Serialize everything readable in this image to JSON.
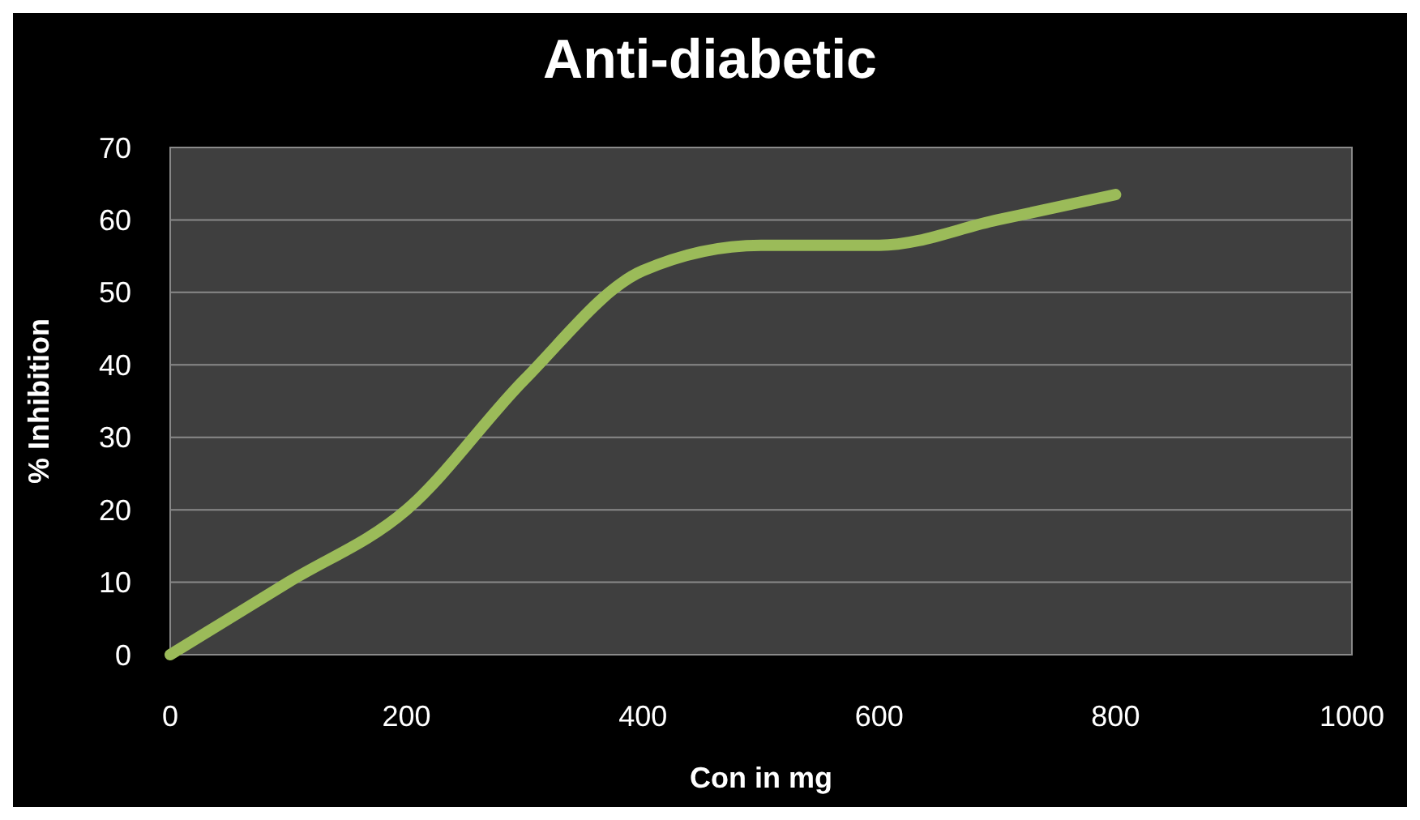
{
  "chart_data": {
    "type": "line",
    "title": "Anti-diabetic",
    "xlabel": "Con in mg",
    "ylabel": "% Inhibition",
    "x": [
      0,
      100,
      200,
      300,
      400,
      500,
      600,
      700,
      800
    ],
    "series": [
      {
        "color": "#9bbb59",
        "values": [
          0,
          10,
          20,
          38,
          53,
          56.5,
          56.5,
          60,
          63.5
        ]
      }
    ],
    "xlim": [
      0,
      1000
    ],
    "xticks": [
      0,
      200,
      400,
      600,
      800,
      1000
    ],
    "ylim": [
      0,
      70
    ],
    "yticks": [
      0,
      10,
      20,
      30,
      40,
      50,
      60,
      70
    ],
    "grid": "y",
    "marker": "none",
    "line_style": "solid"
  }
}
